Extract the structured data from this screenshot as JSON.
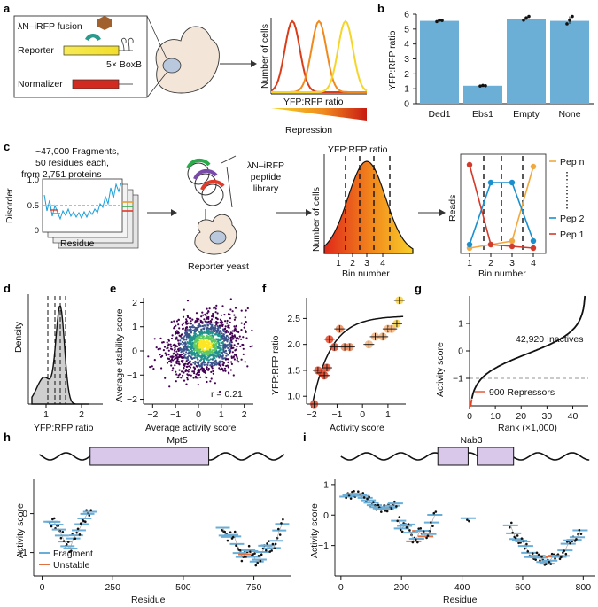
{
  "panels": {
    "a": {
      "letter": "a",
      "fusion_label": "λN–iRFP fusion",
      "reporter_label": "Reporter",
      "boxb_label": "5× BoxB",
      "normalizer_label": "Normalizer",
      "yaxis": "Number of cells",
      "xaxis": "YFP:RFP ratio",
      "gradient_label": "Repression",
      "colors": [
        "#d93d1a",
        "#f08a1e",
        "#f5d52a"
      ]
    },
    "b": {
      "letter": "b",
      "chart_data": {
        "type": "bar",
        "categories": [
          "Ded1",
          "Ebs1",
          "Empty",
          "None"
        ],
        "values": [
          5.55,
          1.2,
          5.7,
          5.55
        ],
        "points": [
          [
            5.5,
            5.6,
            5.58
          ],
          [
            1.18,
            1.22,
            1.2
          ],
          [
            5.6,
            5.75,
            5.85
          ],
          [
            5.35,
            5.6,
            5.85
          ]
        ],
        "ylabel": "YFP:RFP ratio",
        "ylim": [
          0,
          6
        ],
        "yticks": [
          "0",
          "1",
          "2",
          "3",
          "4",
          "5",
          "6"
        ],
        "color": "#6baed6"
      }
    },
    "c": {
      "letter": "c",
      "library_text": [
        "~47,000 Fragments,",
        "50 residues each,",
        "from 2,751 proteins"
      ],
      "disorder_label": "Disorder",
      "disorder_ticks": [
        "0",
        "0.5",
        "1.0"
      ],
      "residue_label": "Residue",
      "peptide_library": [
        "λN–iRFP",
        "peptide",
        "library"
      ],
      "reporter_yeast": "Reporter yeast",
      "bin_title": "YFP:RFP ratio",
      "bin_ylabel": "Number of cells",
      "bin_xlabel": "Bin number",
      "bins": [
        "1",
        "2",
        "3",
        "4"
      ],
      "reads_label": "Reads",
      "peps": [
        "Pep n",
        "Pep 2",
        "Pep 1"
      ]
    },
    "d": {
      "letter": "d",
      "chart_data": {
        "type": "area",
        "xlabel": "YFP:RFP ratio",
        "ylabel": "Density",
        "xticks": [
          "1",
          "2"
        ],
        "xlim": [
          0.5,
          2.6
        ]
      }
    },
    "e": {
      "letter": "e",
      "chart_data": {
        "type": "scatter",
        "xlabel": "Average activity score",
        "ylabel": "Average stability score",
        "xticks": [
          "−2",
          "−1",
          "0",
          "1",
          "2"
        ],
        "yticks": [
          "−2",
          "−1",
          "0",
          "1",
          "2"
        ],
        "xlim": [
          -2.4,
          2.4
        ],
        "ylim": [
          -2.2,
          2.2
        ],
        "annotation": "r = 0.21"
      }
    },
    "f": {
      "letter": "f",
      "chart_data": {
        "type": "scatter",
        "xlabel": "Activity score",
        "ylabel": "YFP:RFP ratio",
        "xticks": [
          "−2",
          "−1",
          "0",
          "1"
        ],
        "yticks": [
          "1.0",
          "1.5",
          "2.0",
          "2.5"
        ],
        "xlim": [
          -2.2,
          1.7
        ],
        "ylim": [
          0.85,
          2.9
        ],
        "points": [
          {
            "x": -1.9,
            "y": 0.65
          },
          {
            "x": -1.75,
            "y": 1.5
          },
          {
            "x": -1.6,
            "y": 1.45
          },
          {
            "x": -1.5,
            "y": 1.4
          },
          {
            "x": -1.4,
            "y": 1.55
          },
          {
            "x": -1.3,
            "y": 2.1
          },
          {
            "x": -1.1,
            "y": 1.95
          },
          {
            "x": -0.9,
            "y": 2.3
          },
          {
            "x": -0.7,
            "y": 1.95
          },
          {
            "x": -0.5,
            "y": 1.95
          },
          {
            "x": 0.25,
            "y": 2.0
          },
          {
            "x": 0.5,
            "y": 2.15
          },
          {
            "x": 0.8,
            "y": 2.15
          },
          {
            "x": 1.0,
            "y": 2.3
          },
          {
            "x": 1.15,
            "y": 2.3
          },
          {
            "x": 1.35,
            "y": 2.4
          },
          {
            "x": 1.45,
            "y": 2.85
          }
        ]
      }
    },
    "g": {
      "letter": "g",
      "chart_data": {
        "type": "line",
        "xlabel": "Rank (×1,000)",
        "ylabel": "Activity score",
        "xticks": [
          "0",
          "10",
          "20",
          "30",
          "40"
        ],
        "yticks": [
          "−1",
          "0",
          "1"
        ],
        "xlim": [
          0,
          46
        ],
        "ylim": [
          -2,
          2
        ],
        "threshold": -1,
        "annotations": [
          "42,920 Inactives",
          "900 Repressors"
        ]
      }
    },
    "h": {
      "letter": "h",
      "title": "Mpt5",
      "chart_data": {
        "type": "scatter",
        "xlabel": "Residue",
        "ylabel": "Activity score",
        "xticks": [
          "0",
          "250",
          "500",
          "750"
        ],
        "yticks": [
          "−1",
          "0"
        ],
        "xlim": [
          -30,
          880
        ],
        "ylim": [
          -1.6,
          0.9
        ],
        "legend": [
          "Fragment",
          "Unstable"
        ]
      }
    },
    "i": {
      "letter": "i",
      "title": "Nab3",
      "chart_data": {
        "type": "scatter",
        "xlabel": "Residue",
        "ylabel": "Activity score",
        "xticks": [
          "0",
          "200",
          "400",
          "600",
          "800"
        ],
        "yticks": [
          "−1",
          "0",
          "1"
        ],
        "xlim": [
          -20,
          840
        ],
        "ylim": [
          -2.0,
          1.2
        ]
      }
    }
  }
}
